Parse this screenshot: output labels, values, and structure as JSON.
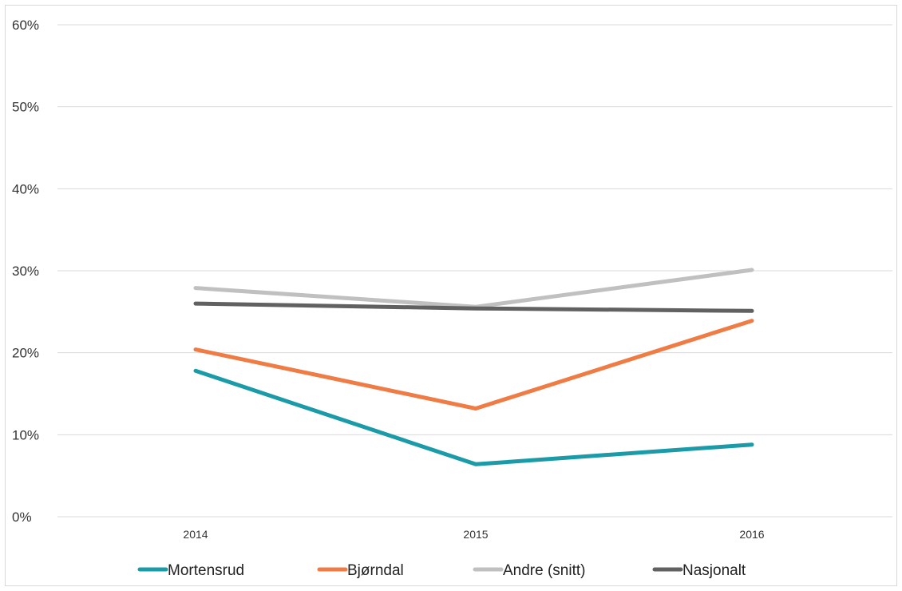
{
  "chart_data": {
    "type": "line",
    "title": "",
    "xlabel": "",
    "ylabel": "",
    "categories": [
      "2014",
      "2015",
      "2016"
    ],
    "ylim": [
      0,
      0.6
    ],
    "yticks": [
      0,
      0.1,
      0.2,
      0.3,
      0.4,
      0.5,
      0.6
    ],
    "ytick_labels": [
      "0%",
      "10%",
      "20%",
      "30%",
      "40%",
      "50%",
      "60%"
    ],
    "grid": true,
    "legend_position": "bottom",
    "series": [
      {
        "name": "Mortensrud",
        "color": "#1a9ba7",
        "values": [
          0.178,
          0.064,
          0.088
        ]
      },
      {
        "name": "Bjørndal",
        "color": "#ef7b45",
        "values": [
          0.204,
          0.132,
          0.239
        ]
      },
      {
        "name": "Andre (snitt)",
        "color": "#c0c0c0",
        "values": [
          0.279,
          0.256,
          0.301
        ]
      },
      {
        "name": "Nasjonalt",
        "color": "#616161",
        "values": [
          0.26,
          0.254,
          0.251
        ]
      }
    ]
  }
}
